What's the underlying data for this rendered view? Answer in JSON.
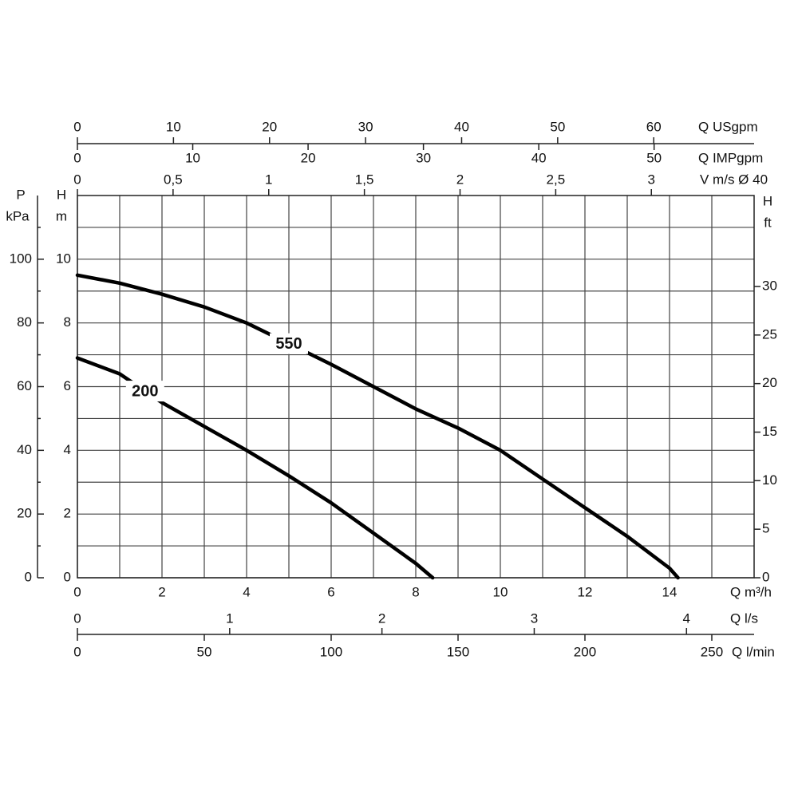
{
  "chart_data": {
    "type": "line",
    "xlim": [
      0,
      16
    ],
    "xticks": [
      0,
      2,
      4,
      6,
      8,
      10,
      12,
      14
    ],
    "minor_xticks": [
      1,
      3,
      5,
      7,
      9,
      11,
      13,
      15
    ],
    "x_label": "Q m³/h",
    "ylim": [
      0,
      12
    ],
    "yticks": [
      0,
      2,
      4,
      6,
      8,
      10
    ],
    "minor_yticks": [
      1,
      3,
      5,
      7,
      9,
      11
    ],
    "y_label_lines": [
      "H",
      "m"
    ],
    "grid": true,
    "series": [
      {
        "name": "550",
        "color": "#000000",
        "x": [
          0,
          1,
          2,
          3,
          4,
          5,
          6,
          7,
          8,
          9,
          10,
          11,
          12,
          13,
          14,
          14.2
        ],
        "values": [
          9.5,
          9.25,
          8.9,
          8.5,
          8.0,
          7.35,
          6.7,
          6.0,
          5.3,
          4.7,
          4.0,
          3.1,
          2.2,
          1.3,
          0.3,
          0
        ]
      },
      {
        "name": "200",
        "color": "#000000",
        "x": [
          0,
          1,
          2,
          3,
          4,
          5,
          6,
          7,
          8,
          8.4
        ],
        "values": [
          6.9,
          6.4,
          5.5,
          4.75,
          4.0,
          3.2,
          2.35,
          1.4,
          0.45,
          0
        ]
      }
    ],
    "secondary_axes": [
      {
        "side": "top",
        "label_lines": [
          "Q USgpm"
        ],
        "lim": [
          0,
          70.45
        ],
        "ticks": [
          0,
          10,
          20,
          30,
          40,
          50,
          60
        ]
      },
      {
        "side": "top",
        "label_lines": [
          "Q IMPgpm"
        ],
        "lim": [
          0,
          58.67
        ],
        "ticks": [
          0,
          10,
          20,
          30,
          40,
          50
        ]
      },
      {
        "side": "top",
        "label_lines": [
          "V m/s Ø 40"
        ],
        "lim": [
          0,
          3.537
        ],
        "ticks": [
          0,
          {
            "value": 0.5,
            "label": "0,5"
          },
          1,
          {
            "value": 1.5,
            "label": "1,5"
          },
          2,
          {
            "value": 2.5,
            "label": "2,5"
          },
          3
        ]
      },
      {
        "side": "left",
        "label_lines": [
          "P",
          "kPa"
        ],
        "lim": [
          0,
          120
        ],
        "ticks": [
          0,
          20,
          40,
          60,
          80,
          100
        ],
        "minor_ticks": [
          10,
          30,
          50,
          70,
          90,
          110
        ]
      },
      {
        "side": "right",
        "label_lines": [
          "H",
          "ft"
        ],
        "lim": [
          0,
          39.37
        ],
        "ticks": [
          0,
          5,
          10,
          15,
          20,
          25,
          30
        ]
      },
      {
        "side": "bottom",
        "label_lines": [
          "Q l/s"
        ],
        "lim": [
          0,
          4.444
        ],
        "ticks": [
          0,
          1,
          2,
          3,
          4
        ]
      },
      {
        "side": "bottom",
        "label_lines": [
          "Q l/min"
        ],
        "lim": [
          0,
          266.67
        ],
        "ticks": [
          0,
          50,
          100,
          150,
          200,
          250
        ]
      }
    ]
  }
}
